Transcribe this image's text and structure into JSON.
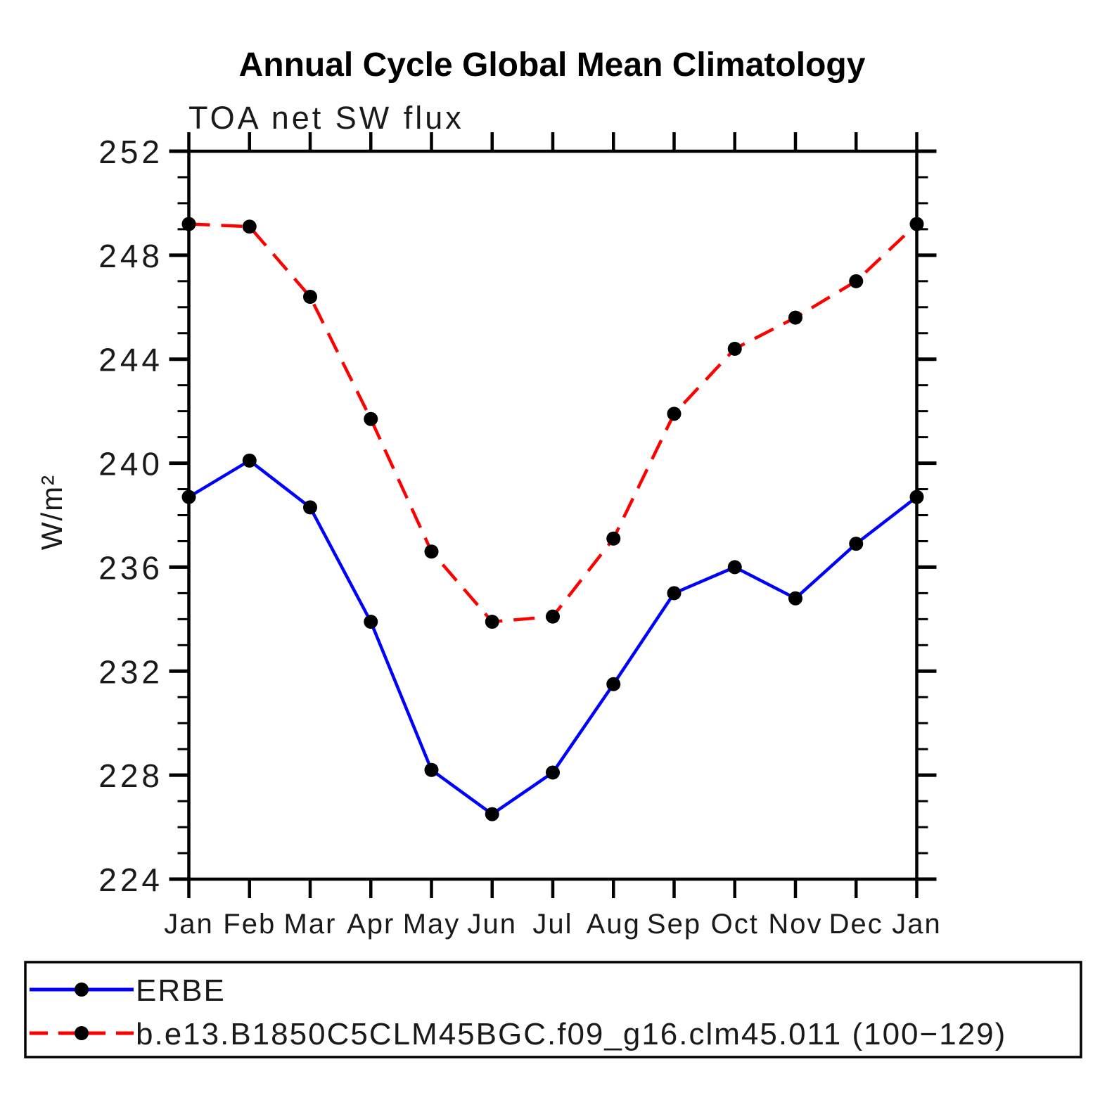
{
  "chart_data": {
    "type": "line",
    "title": "Annual Cycle Global Mean Climatology",
    "subtitle": "TOA net SW flux",
    "xlabel": "",
    "ylabel": "W/m²",
    "categories": [
      "Jan",
      "Feb",
      "Mar",
      "Apr",
      "May",
      "Jun",
      "Jul",
      "Aug",
      "Sep",
      "Oct",
      "Nov",
      "Dec",
      "Jan"
    ],
    "ylim": [
      224,
      252
    ],
    "yticks_major": [
      224,
      228,
      232,
      236,
      240,
      244,
      248,
      252
    ],
    "ytick_major_step": 4,
    "ytick_minor_step": 1,
    "grid": false,
    "legend_position": "bottom",
    "axis_color": "#000000",
    "marker_shape": "circle",
    "series": [
      {
        "name": "ERBE",
        "color": "#0000ff",
        "line_style": "solid",
        "marker_color": "#000000",
        "values": [
          238.7,
          240.1,
          238.3,
          233.9,
          228.2,
          226.5,
          228.1,
          231.5,
          235.0,
          236.0,
          234.8,
          236.9,
          238.7
        ]
      },
      {
        "name": "b.e13.B1850C5CLM45BGC.f09_g16.clm45.011 (100−129)",
        "color": "#ff0000",
        "line_style": "dashed",
        "marker_color": "#000000",
        "values": [
          249.2,
          249.1,
          246.4,
          241.7,
          236.6,
          233.9,
          234.1,
          237.1,
          241.9,
          244.4,
          245.6,
          247.0,
          249.2
        ]
      }
    ]
  }
}
